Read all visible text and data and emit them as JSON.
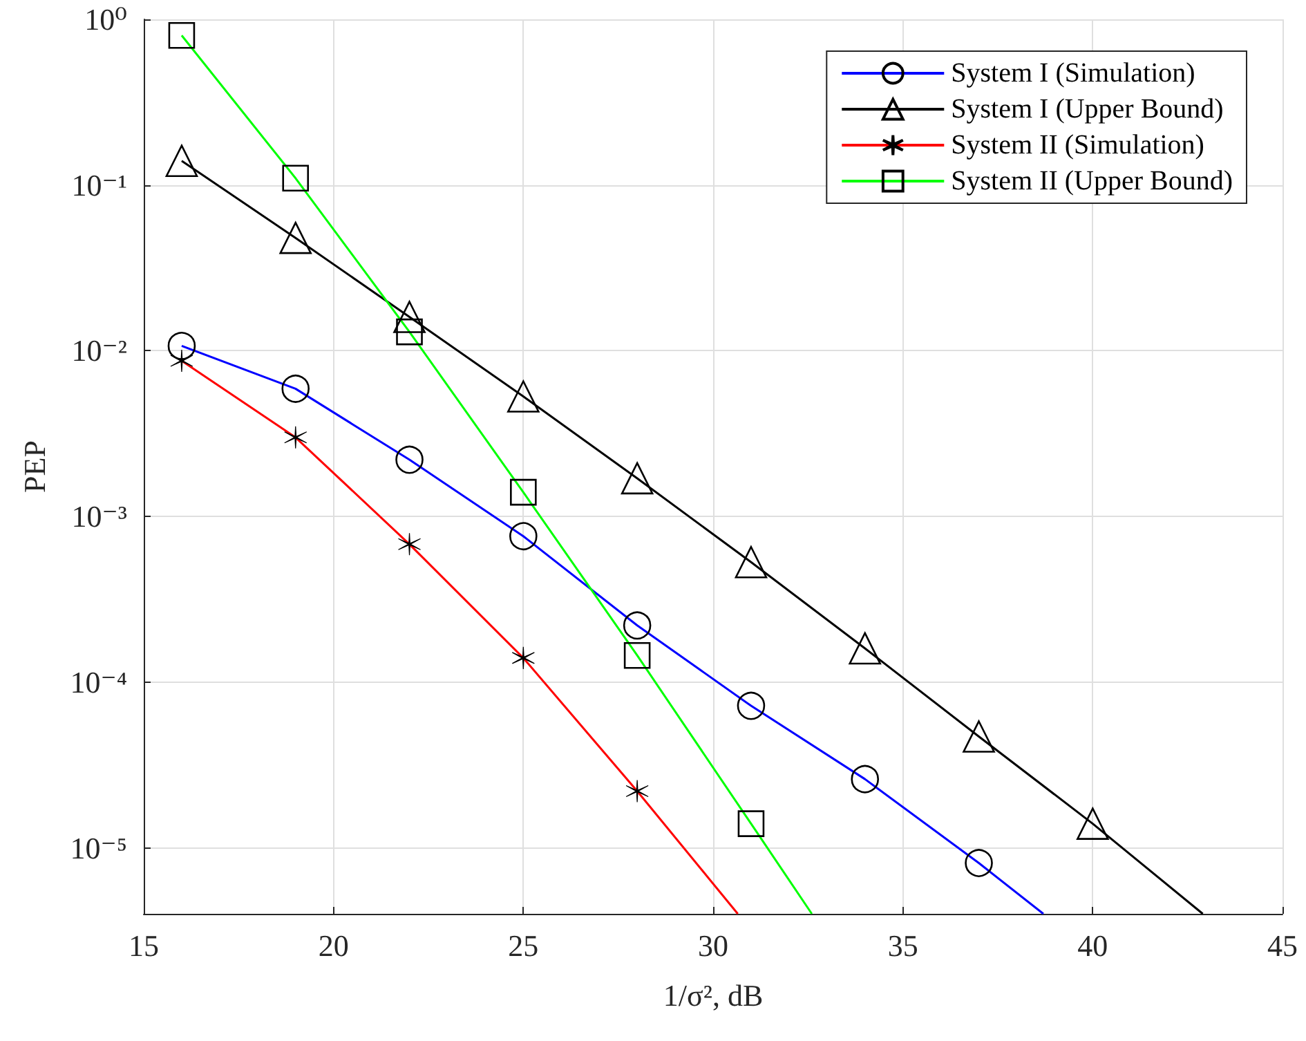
{
  "chart_data": {
    "type": "line",
    "xlabel": "1/σ², dB",
    "ylabel": "PEP",
    "log": "y",
    "grid": true,
    "legend": "top right",
    "xlim": [
      15,
      45
    ],
    "xticks": [
      15,
      20,
      25,
      30,
      35,
      40,
      45
    ],
    "ylim": [
      4e-06,
      1
    ],
    "yticks": [
      {
        "value": 1e-05,
        "label": "10⁻⁵"
      },
      {
        "value": 0.0001,
        "label": "10⁻⁴"
      },
      {
        "value": 0.001,
        "label": "10⁻³"
      },
      {
        "value": 0.01,
        "label": "10⁻²"
      },
      {
        "value": 0.1,
        "label": "10⁻¹"
      },
      {
        "value": 1,
        "label": "10⁰"
      }
    ],
    "series": [
      {
        "name": "System I (Simulation)",
        "color": "#0000ff",
        "marker": "circle",
        "x": [
          16,
          19,
          22,
          25,
          28,
          31,
          34,
          37,
          38.7
        ],
        "values": [
          0.0107,
          0.0059,
          0.0022,
          0.00076,
          0.00022,
          7.2e-05,
          2.6e-05,
          8.1e-06,
          4e-06
        ]
      },
      {
        "name": "System I (Upper Bound)",
        "color": "#000000",
        "marker": "triangle",
        "x": [
          16,
          19,
          22,
          25,
          28,
          31,
          34,
          37,
          40,
          42.9
        ],
        "values": [
          0.14,
          0.048,
          0.016,
          0.0053,
          0.0017,
          0.00053,
          0.00016,
          4.7e-05,
          1.4e-05,
          4e-06
        ]
      },
      {
        "name": "System II (Simulation)",
        "color": "#ff0000",
        "marker": "cross",
        "x": [
          16,
          19,
          22,
          25,
          28,
          30.65
        ],
        "values": [
          0.0087,
          0.003,
          0.00068,
          0.00014,
          2.2e-05,
          4e-06
        ]
      },
      {
        "name": "System II (Upper Bound)",
        "color": "#00ff00",
        "marker": "square",
        "x": [
          16,
          19,
          22,
          25,
          28,
          31,
          32.6
        ],
        "values": [
          0.8,
          0.11,
          0.013,
          0.0014,
          0.000145,
          1.4e-05,
          4e-06
        ]
      }
    ]
  }
}
